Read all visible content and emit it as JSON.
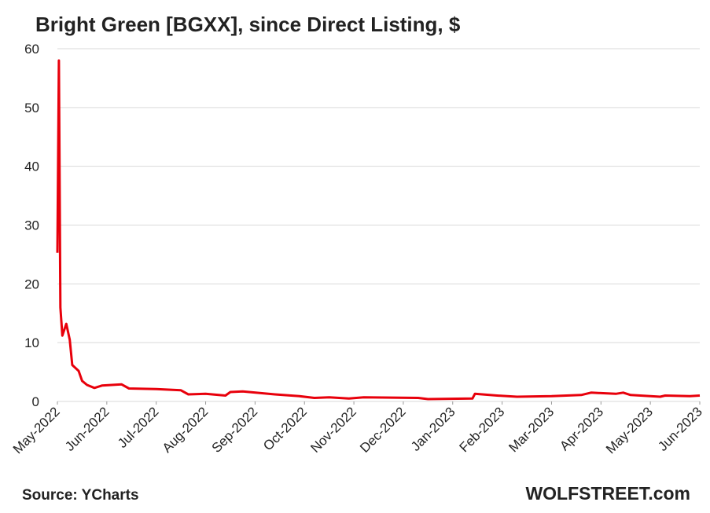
{
  "chart_data": {
    "type": "line",
    "title": "Bright Green [BGXX], since Direct Listing, $",
    "source": "Source: YCharts",
    "brand": "WOLFSTREET.com",
    "series": [
      {
        "name": "BGXX",
        "color": "#e8000b",
        "x": [
          0,
          0.03,
          0.06,
          0.1,
          0.18,
          0.25,
          0.3,
          0.43,
          0.5,
          0.6,
          0.75,
          0.9,
          1.3,
          1.45,
          2.0,
          2.5,
          2.65,
          3.0,
          3.4,
          3.5,
          3.75,
          4.4,
          4.9,
          5.2,
          5.5,
          5.9,
          6.2,
          7.3,
          7.5,
          8.4,
          8.45,
          8.9,
          9.3,
          10.0,
          10.6,
          10.8,
          11.3,
          11.45,
          11.6,
          12.2,
          12.3,
          12.8,
          13.0
        ],
        "values": [
          25.3,
          58,
          16,
          11.2,
          13.2,
          10.5,
          6.2,
          5.2,
          3.5,
          2.8,
          2.3,
          2.7,
          2.9,
          2.2,
          2.1,
          1.9,
          1.2,
          1.3,
          1.0,
          1.6,
          1.7,
          1.2,
          0.9,
          0.6,
          0.7,
          0.5,
          0.7,
          0.6,
          0.4,
          0.5,
          1.3,
          1.0,
          0.8,
          0.9,
          1.1,
          1.5,
          1.3,
          1.5,
          1.1,
          0.8,
          1.0,
          0.9,
          1.0
        ]
      }
    ],
    "xlim": [
      0,
      13
    ],
    "xticks": [
      {
        "value": 0,
        "label": "May-2022"
      },
      {
        "value": 1,
        "label": "Jun-2022"
      },
      {
        "value": 2,
        "label": "Jul-2022"
      },
      {
        "value": 3,
        "label": "Aug-2022"
      },
      {
        "value": 4,
        "label": "Sep-2022"
      },
      {
        "value": 5,
        "label": "Oct-2022"
      },
      {
        "value": 6,
        "label": "Nov-2022"
      },
      {
        "value": 7,
        "label": "Dec-2022"
      },
      {
        "value": 8,
        "label": "Jan-2023"
      },
      {
        "value": 9,
        "label": "Feb-2023"
      },
      {
        "value": 10,
        "label": "Mar-2023"
      },
      {
        "value": 11,
        "label": "Apr-2023"
      },
      {
        "value": 12,
        "label": "May-2023"
      },
      {
        "value": 13,
        "label": "Jun-2023"
      }
    ],
    "ylim": [
      0,
      60
    ],
    "yticks": [
      0,
      10,
      20,
      30,
      40,
      50,
      60
    ],
    "grid": true
  }
}
